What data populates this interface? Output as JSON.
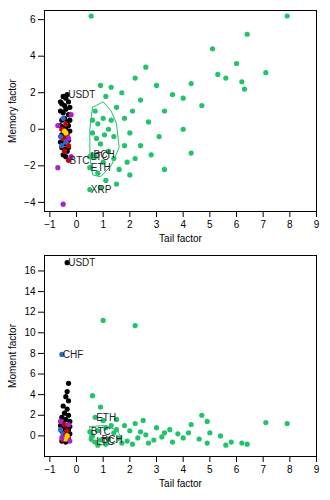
{
  "chart_data": [
    {
      "type": "scatter",
      "x_label": "Tail factor",
      "y_label": "Memory factor",
      "xlim": [
        -1.2,
        9
      ],
      "xticks": [
        -1,
        0,
        1,
        2,
        3,
        4,
        5,
        6,
        7,
        8,
        9
      ],
      "ylim": [
        -4.5,
        6.5
      ],
      "yticks": [
        -4,
        -2,
        0,
        2,
        4,
        6
      ],
      "series": [
        {
          "type": "scatter",
          "marker": "circle",
          "color": "#22c36a",
          "x": [
            0.55,
            7.9,
            6.4,
            5.1,
            6.0,
            7.1,
            5.3,
            5.6,
            6.2,
            6.3,
            4.3,
            4.0,
            2.6,
            2.2,
            3.0,
            3.6,
            4.7,
            3.3,
            2.1,
            2.7,
            3.1,
            4.0,
            4.3,
            3.3,
            2.8,
            2.4,
            2.0,
            1.8,
            1.7,
            1.3,
            0.9,
            1.1,
            0.7,
            0.8,
            1.0,
            1.2,
            1.4,
            0.6,
            0.9,
            1.2,
            0.7,
            1.0,
            1.4,
            1.6,
            0.8,
            1.1,
            0.9,
            0.5,
            0.5,
            0.5,
            0.6,
            1.8,
            2.2,
            1.5,
            2.0,
            0.75,
            1.05,
            1.3,
            1.5,
            0.6,
            2.4,
            1.9
          ],
          "values": [
            6.2,
            6.2,
            5.2,
            4.4,
            3.6,
            3.1,
            3.0,
            2.8,
            2.6,
            2.2,
            2.5,
            1.7,
            3.4,
            2.8,
            2.4,
            1.9,
            1.3,
            1.0,
            1.0,
            0.4,
            -0.4,
            0.0,
            -1.3,
            -2.2,
            -1.4,
            -0.9,
            -0.2,
            0.6,
            2.0,
            2.3,
            2.4,
            1.8,
            1.0,
            0.3,
            0.6,
            0.0,
            -0.4,
            -0.2,
            -0.8,
            -1.2,
            -1.5,
            -1.8,
            -1.6,
            -2.2,
            -2.4,
            -2.8,
            -3.2,
            -3.3,
            -2.1,
            -1.5,
            -1.4,
            -0.9,
            -1.6,
            -3.0,
            -2.5,
            -0.5,
            -0.3,
            0.5,
            1.2,
            0.5,
            1.6,
            -1.8
          ]
        },
        {
          "type": "line",
          "color": "#22c36a",
          "x": [
            0.6,
            1.0,
            1.3,
            1.5,
            1.6,
            1.3,
            0.9,
            0.6,
            0.5,
            0.5,
            0.6
          ],
          "values": [
            1.2,
            1.5,
            1.0,
            0.3,
            -1.0,
            -2.0,
            -2.6,
            -2.5,
            -1.5,
            0.0,
            1.2
          ]
        },
        {
          "type": "scatter",
          "marker": "circle",
          "color": "#000000",
          "x": [
            -0.5,
            -0.4,
            -0.35,
            -0.55,
            -0.45,
            -0.3,
            -0.6,
            -0.5,
            -0.4,
            -0.3,
            -0.25,
            -0.55,
            -0.45,
            -0.35,
            -0.6,
            -0.5,
            -0.4,
            -0.3,
            -0.25,
            -0.55,
            -0.45,
            -0.35,
            -0.6,
            -0.5,
            -0.4,
            -0.3,
            -0.55,
            -0.45,
            -0.35,
            -0.5,
            -0.4,
            -0.6,
            -0.25,
            -0.3
          ],
          "values": [
            1.8,
            1.7,
            1.9,
            1.4,
            1.3,
            1.5,
            1.0,
            0.9,
            1.1,
            0.8,
            1.2,
            0.5,
            0.6,
            0.4,
            0.2,
            0.1,
            0.0,
            0.2,
            -0.1,
            -0.3,
            -0.4,
            -0.2,
            -0.7,
            -0.6,
            -0.8,
            -0.6,
            -1.0,
            -1.1,
            -1.2,
            -1.4,
            -1.5,
            1.5,
            0.5,
            -1.0
          ]
        },
        {
          "type": "scatter",
          "marker": "circle",
          "color": "#cc0000",
          "x": [
            -0.5,
            -0.4,
            -0.3,
            -0.45,
            -0.35,
            -0.3,
            -0.55
          ],
          "values": [
            -0.5,
            0.3,
            -0.9,
            -1.2,
            -0.3,
            -1.7,
            0.0
          ]
        },
        {
          "type": "scatter",
          "marker": "circle",
          "color": "#3366cc",
          "x": [
            -0.6,
            -0.5,
            -0.4,
            -0.55
          ],
          "values": [
            -0.4,
            0.6,
            -0.7,
            -0.9
          ]
        },
        {
          "type": "scatter",
          "marker": "circle",
          "color": "#ffd700",
          "x": [
            -0.45,
            -0.4
          ],
          "values": [
            -0.1,
            -0.2
          ]
        },
        {
          "type": "scatter",
          "marker": "circle",
          "color": "#aa22cc",
          "x": [
            -0.7,
            -0.5,
            -0.2,
            -0.3,
            -0.7,
            -0.2
          ],
          "values": [
            -2.1,
            -4.1,
            -1.5,
            -0.5,
            0.2,
            0.8
          ]
        }
      ],
      "annotations": [
        {
          "text": "USDT",
          "x": -0.35,
          "y": 1.9
        },
        {
          "text": "LTC",
          "x": 0.5,
          "y": -1.5
        },
        {
          "text": "BCH",
          "x": 0.6,
          "y": -1.4
        },
        {
          "text": "BTC",
          "x": -0.3,
          "y": -1.7
        },
        {
          "text": "ETH",
          "x": 0.5,
          "y": -2.1
        },
        {
          "text": "XRP",
          "x": 0.5,
          "y": -3.3
        }
      ]
    },
    {
      "type": "scatter",
      "x_label": "Tail factor",
      "y_label": "Moment factor",
      "xlim": [
        -1.2,
        9
      ],
      "xticks": [
        -1,
        0,
        1,
        2,
        3,
        4,
        5,
        6,
        7,
        8,
        9
      ],
      "ylim": [
        -2,
        17.5
      ],
      "yticks": [
        0,
        2,
        4,
        6,
        8,
        10,
        12,
        14,
        16
      ],
      "series": [
        {
          "type": "scatter",
          "marker": "circle",
          "color": "#22c36a",
          "x": [
            1.0,
            2.2,
            0.6,
            0.9,
            0.7,
            4.7,
            4.9,
            4.3,
            7.1,
            7.9,
            5.4,
            5.8,
            6.2,
            6.4,
            5.6,
            4.6,
            3.5,
            3.0,
            2.5,
            2.2,
            2.0,
            1.8,
            1.5,
            1.3,
            1.1,
            1.0,
            0.8,
            0.6,
            0.7,
            0.9,
            1.2,
            1.4,
            1.6,
            1.9,
            2.3,
            2.6,
            2.9,
            3.2,
            3.6,
            4.0,
            4.2,
            3.8,
            2.7,
            2.1,
            1.7,
            1.1,
            0.5,
            0.8,
            1.5,
            2.4,
            3.3,
            4.9,
            5.0,
            0.55
          ],
          "values": [
            11.2,
            10.7,
            3.9,
            2.8,
            1.8,
            2.0,
            1.4,
            1.1,
            1.3,
            1.2,
            0.0,
            -0.6,
            -0.7,
            -0.8,
            -0.9,
            -0.3,
            0.6,
            0.8,
            1.5,
            1.2,
            0.5,
            1.0,
            1.6,
            1.0,
            0.8,
            1.5,
            0.5,
            0.0,
            -0.6,
            -0.4,
            -0.3,
            0.3,
            -0.2,
            -0.5,
            -0.2,
            0.1,
            -0.4,
            -0.1,
            -0.6,
            -0.2,
            0.3,
            0.2,
            -0.7,
            -0.8,
            -0.7,
            -0.8,
            0.4,
            -0.9,
            0.6,
            0.4,
            0.3,
            -0.7,
            0.3,
            -0.3
          ]
        },
        {
          "type": "line",
          "color": "#22c36a",
          "x": [
            0.5,
            1.0,
            1.5,
            1.7,
            1.4,
            0.8,
            0.5,
            0.5
          ],
          "values": [
            0.9,
            1.0,
            0.6,
            -0.2,
            -0.8,
            -0.9,
            -0.5,
            0.9
          ]
        },
        {
          "type": "scatter",
          "marker": "circle",
          "color": "#000000",
          "x": [
            -0.3,
            -0.35,
            -0.4,
            -0.3,
            -0.5,
            -0.35,
            -0.45,
            -0.3,
            -0.55,
            -0.4,
            -0.25,
            -0.5,
            -0.35,
            -0.45,
            -0.3,
            -0.55,
            -0.4,
            -0.25,
            -0.5,
            -0.35,
            -0.45,
            -0.3,
            -0.55,
            -0.4,
            -0.35,
            -0.6,
            -0.25
          ],
          "values": [
            5.1,
            4.3,
            3.8,
            3.4,
            2.9,
            2.6,
            2.2,
            2.0,
            1.8,
            1.6,
            1.4,
            1.2,
            1.0,
            0.8,
            0.6,
            0.5,
            0.3,
            0.2,
            0.0,
            -0.1,
            -0.3,
            -0.4,
            -0.5,
            -0.6,
            16.8,
            1.0,
            0.9
          ]
        },
        {
          "type": "scatter",
          "marker": "circle",
          "color": "#3366cc",
          "x": [
            -0.55,
            -0.5,
            -0.45,
            -0.6
          ],
          "values": [
            7.9,
            0.2,
            -0.2,
            0.6
          ]
        },
        {
          "type": "scatter",
          "marker": "circle",
          "color": "#cc0000",
          "x": [
            -0.4,
            -0.35,
            -0.5,
            -0.3,
            -0.45
          ],
          "values": [
            0.1,
            0.5,
            -0.4,
            -0.2,
            1.1
          ]
        },
        {
          "type": "scatter",
          "marker": "circle",
          "color": "#ffd700",
          "x": [
            -0.4,
            -0.35
          ],
          "values": [
            -0.3,
            0.0
          ]
        },
        {
          "type": "scatter",
          "marker": "circle",
          "color": "#aa22cc",
          "x": [
            -0.6,
            -0.55,
            -0.3,
            -0.25
          ],
          "values": [
            1.4,
            -0.2,
            1.1,
            -0.5
          ]
        }
      ],
      "annotations": [
        {
          "text": "USDT",
          "x": -0.35,
          "y": 16.8
        },
        {
          "text": "CHF",
          "x": -0.55,
          "y": 7.9
        },
        {
          "text": "ETH",
          "x": 0.7,
          "y": 1.8
        },
        {
          "text": "BTC",
          "x": 0.5,
          "y": 0.4
        },
        {
          "text": "LTC",
          "x": 0.7,
          "y": -0.6
        },
        {
          "text": "BCH",
          "x": 0.9,
          "y": -0.4
        }
      ]
    }
  ]
}
